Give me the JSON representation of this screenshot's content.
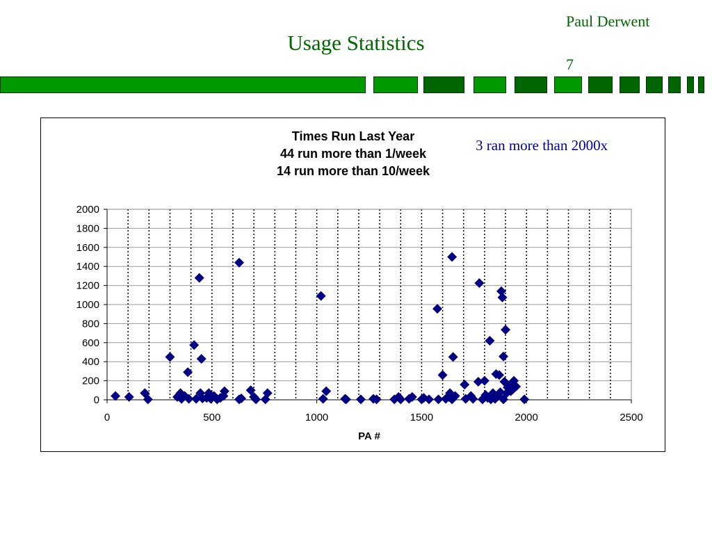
{
  "slide": {
    "author": "Paul Derwent",
    "title": "Usage Statistics",
    "page_number": "7",
    "colors": {
      "title": "#006600",
      "bar_bright": "#009900",
      "bar_dark": "#006600",
      "marker": "#000080",
      "annotation": "#000099"
    }
  },
  "annotation": "3 ran more than 2000x",
  "chart_data": {
    "type": "scatter",
    "title_lines": [
      "Times Run Last Year",
      "44 run more than 1/week",
      "14 run more than 10/week"
    ],
    "xlabel": "PA #",
    "ylabel": "",
    "xlim": [
      0,
      2500
    ],
    "ylim": [
      0,
      2000
    ],
    "x_ticks": [
      0,
      500,
      1000,
      1500,
      2000,
      2500
    ],
    "y_ticks": [
      0,
      200,
      400,
      600,
      800,
      1000,
      1200,
      1400,
      1600,
      1800,
      2000
    ],
    "vertical_grid": "dotted every 100",
    "horizontal_grid": "solid every 200",
    "legend": "none",
    "series": [
      {
        "points": [
          [
            40,
            40
          ],
          [
            105,
            30
          ],
          [
            180,
            70
          ],
          [
            195,
            5
          ],
          [
            300,
            450
          ],
          [
            335,
            30
          ],
          [
            350,
            70
          ],
          [
            355,
            10
          ],
          [
            370,
            40
          ],
          [
            385,
            290
          ],
          [
            390,
            10
          ],
          [
            415,
            575
          ],
          [
            425,
            10
          ],
          [
            440,
            1280
          ],
          [
            445,
            70
          ],
          [
            450,
            430
          ],
          [
            455,
            15
          ],
          [
            475,
            20
          ],
          [
            485,
            70
          ],
          [
            495,
            10
          ],
          [
            510,
            40
          ],
          [
            525,
            5
          ],
          [
            540,
            20
          ],
          [
            555,
            40
          ],
          [
            560,
            90
          ],
          [
            630,
            1440
          ],
          [
            630,
            5
          ],
          [
            640,
            15
          ],
          [
            685,
            100
          ],
          [
            700,
            30
          ],
          [
            710,
            5
          ],
          [
            755,
            5
          ],
          [
            765,
            70
          ],
          [
            1020,
            1090
          ],
          [
            1030,
            10
          ],
          [
            1045,
            90
          ],
          [
            1135,
            10
          ],
          [
            1140,
            5
          ],
          [
            1210,
            5
          ],
          [
            1270,
            10
          ],
          [
            1285,
            5
          ],
          [
            1370,
            5
          ],
          [
            1390,
            30
          ],
          [
            1400,
            5
          ],
          [
            1440,
            10
          ],
          [
            1455,
            30
          ],
          [
            1500,
            5
          ],
          [
            1510,
            20
          ],
          [
            1535,
            5
          ],
          [
            1575,
            955
          ],
          [
            1580,
            5
          ],
          [
            1600,
            260
          ],
          [
            1615,
            10
          ],
          [
            1630,
            30
          ],
          [
            1635,
            70
          ],
          [
            1645,
            1500
          ],
          [
            1645,
            5
          ],
          [
            1650,
            450
          ],
          [
            1660,
            40
          ],
          [
            1705,
            160
          ],
          [
            1710,
            10
          ],
          [
            1735,
            40
          ],
          [
            1745,
            10
          ],
          [
            1770,
            190
          ],
          [
            1775,
            1225
          ],
          [
            1790,
            5
          ],
          [
            1800,
            200
          ],
          [
            1805,
            50
          ],
          [
            1815,
            20
          ],
          [
            1825,
            620
          ],
          [
            1830,
            5
          ],
          [
            1840,
            70
          ],
          [
            1850,
            10
          ],
          [
            1855,
            270
          ],
          [
            1865,
            40
          ],
          [
            1870,
            260
          ],
          [
            1875,
            80
          ],
          [
            1880,
            1140
          ],
          [
            1885,
            1075
          ],
          [
            1890,
            455
          ],
          [
            1890,
            5
          ],
          [
            1895,
            190
          ],
          [
            1900,
            735
          ],
          [
            1905,
            70
          ],
          [
            1910,
            130
          ],
          [
            1920,
            150
          ],
          [
            1925,
            90
          ],
          [
            1935,
            110
          ],
          [
            1940,
            200
          ],
          [
            1950,
            140
          ],
          [
            1990,
            5
          ]
        ]
      }
    ]
  }
}
